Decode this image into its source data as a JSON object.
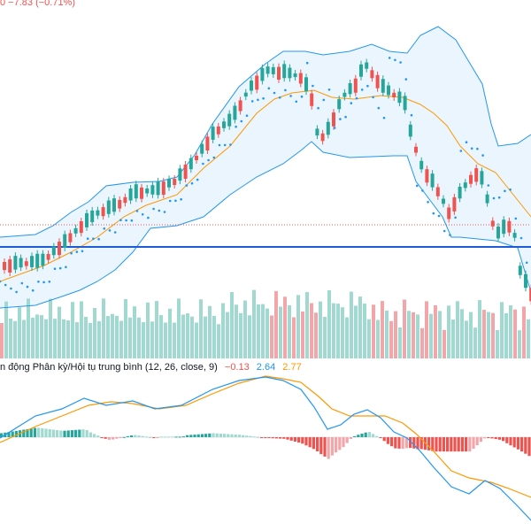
{
  "header": {
    "change_text": "0  −7.83 (−0.71%)"
  },
  "macd": {
    "title": "n động Phân kỳ/Hội tụ trung bình (12, 26, close, 9)",
    "hist_value": "−0.13",
    "macd_value": "2.64",
    "signal_value": "2.77"
  },
  "colors": {
    "up": "#26a69a",
    "down": "#ef5350",
    "volume_up": "#9fd9cf",
    "volume_down": "#f3a6a9",
    "bollinger_band": "#2196f3",
    "bollinger_fill": "#e3f2fd",
    "basis": "#ff9800",
    "sar": "#2196f3",
    "horizontal_line": "#1e5bd8",
    "macd_line": "#2196f3",
    "signal_line": "#ff9800"
  },
  "icons": []
}
